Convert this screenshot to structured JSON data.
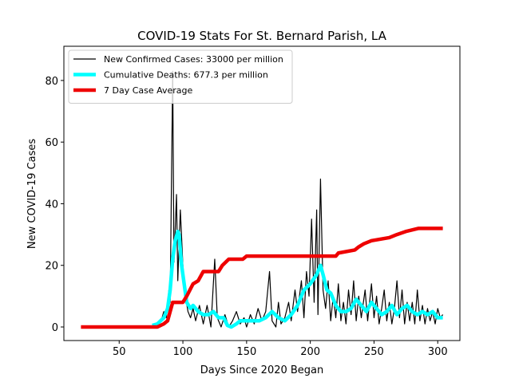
{
  "chart_data": {
    "type": "line",
    "title": "COVID-19 Stats For St. Bernard Parish, LA",
    "xlabel": "Days Since 2020 Began",
    "ylabel": "New COVID-19 Cases",
    "xlim": [
      6.6,
      317.4
    ],
    "ylim": [
      -4.4,
      91.1
    ],
    "xticks": [
      50,
      100,
      150,
      200,
      250,
      300
    ],
    "yticks": [
      0,
      20,
      40,
      60,
      80
    ],
    "legend": "upper left",
    "series": [
      {
        "name": "New Confirmed Cases: 33000 per million",
        "color": "#000000",
        "width": 1.2,
        "x": [
          76,
          80,
          83,
          85,
          87,
          89,
          90,
          92,
          93,
          95,
          96,
          98,
          100,
          102,
          104,
          106,
          108,
          110,
          113,
          116,
          119,
          122,
          125,
          127,
          130,
          133,
          136,
          139,
          142,
          145,
          148,
          150,
          153,
          156,
          159,
          162,
          165,
          168,
          170,
          173,
          175,
          177,
          180,
          183,
          185,
          188,
          190,
          193,
          195,
          197,
          199,
          201,
          203,
          205,
          206,
          208,
          210,
          212,
          214,
          216,
          218,
          220,
          222,
          224,
          226,
          228,
          230,
          232,
          234,
          236,
          238,
          240,
          243,
          245,
          248,
          250,
          252,
          254,
          256,
          258,
          260,
          262,
          264,
          266,
          268,
          270,
          272,
          274,
          276,
          278,
          280,
          282,
          284,
          286,
          288,
          290,
          292,
          294,
          296,
          298,
          300,
          302,
          304
        ],
        "values": [
          0,
          1,
          2,
          5,
          3,
          12,
          8,
          83,
          21,
          43,
          15,
          38,
          20,
          10,
          5,
          3,
          6,
          2,
          7,
          1,
          7,
          0,
          22,
          3,
          0,
          4,
          0,
          2,
          5,
          1,
          3,
          0,
          4,
          1,
          6,
          2,
          5,
          18,
          2,
          0,
          8,
          1,
          3,
          8,
          2,
          12,
          5,
          15,
          3,
          18,
          10,
          35,
          8,
          38,
          4,
          48,
          12,
          6,
          15,
          2,
          10,
          3,
          14,
          2,
          8,
          1,
          12,
          4,
          15,
          2,
          10,
          3,
          12,
          2,
          14,
          3,
          10,
          1,
          6,
          12,
          2,
          8,
          1,
          6,
          15,
          3,
          12,
          1,
          8,
          2,
          8,
          1,
          12,
          2,
          7,
          1,
          6,
          2,
          5,
          1,
          6,
          3,
          4
        ]
      },
      {
        "name": "Cumulative Deaths: 677.3 per million",
        "color": "#00ffff",
        "width": 4.5,
        "x": [
          76,
          80,
          85,
          88,
          90,
          92,
          94,
          96,
          97,
          99,
          101,
          103,
          106,
          108,
          112,
          116,
          120,
          124,
          128,
          132,
          135,
          138,
          142,
          145,
          150,
          155,
          160,
          165,
          170,
          175,
          180,
          185,
          190,
          195,
          200,
          205,
          208,
          210,
          213,
          216,
          220,
          224,
          228,
          232,
          236,
          240,
          244,
          248,
          252,
          256,
          260,
          264,
          268,
          272,
          276,
          280,
          284,
          288,
          292,
          296,
          300,
          304
        ],
        "values": [
          0.5,
          1,
          3,
          6,
          12,
          22,
          28,
          31,
          30,
          20,
          14,
          8,
          6,
          7,
          5,
          4,
          4,
          5,
          3,
          3,
          0.5,
          0,
          1,
          2,
          2,
          2,
          2,
          3,
          5,
          3,
          2,
          4,
          7,
          12,
          14,
          17,
          20,
          17,
          12,
          11,
          7,
          5,
          5,
          6,
          9,
          7,
          5,
          8,
          6,
          4,
          5,
          7,
          4,
          6,
          7,
          5,
          4,
          5,
          4,
          5,
          3,
          3
        ]
      },
      {
        "name": "7 Day Case Average",
        "color": "#ee0000",
        "width": 4.5,
        "x": [
          20,
          80,
          85,
          88,
          90,
          92,
          100,
          103,
          108,
          112,
          116,
          128,
          131,
          136,
          147,
          150,
          220,
          222,
          235,
          238,
          242,
          248,
          262,
          268,
          275,
          285,
          304
        ],
        "values": [
          0,
          0,
          1,
          2,
          5,
          8,
          8,
          10,
          14,
          15,
          18,
          18,
          20,
          22,
          22,
          23,
          23,
          24,
          25,
          26,
          27,
          28,
          29,
          30,
          31,
          32,
          32
        ]
      }
    ]
  }
}
